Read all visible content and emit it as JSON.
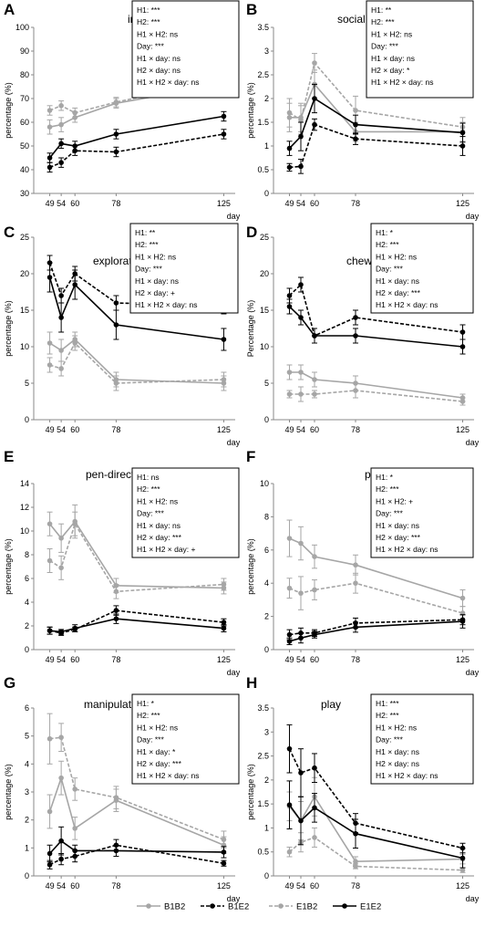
{
  "colors": {
    "B1B2": "#a6a6a6",
    "B1E2": "#000000",
    "E1B2": "#a6a6a6",
    "E1E2": "#000000"
  },
  "legend": [
    {
      "name": "B1B2",
      "color": "#a6a6a6",
      "dashed": false
    },
    {
      "name": "B1E2",
      "color": "#000000",
      "dashed": true
    },
    {
      "name": "E1B2",
      "color": "#a6a6a6",
      "dashed": true
    },
    {
      "name": "E1E2",
      "color": "#000000",
      "dashed": false
    }
  ],
  "chart_data": [
    {
      "panel": "A",
      "type": "line",
      "title": "inactivity",
      "ylabel": "percentage (%)",
      "xlabel": "day",
      "x": [
        49,
        54,
        60,
        78,
        125
      ],
      "ylim": [
        30,
        100
      ],
      "yticks": [
        30,
        40,
        50,
        60,
        70,
        80,
        90,
        100
      ],
      "stats": [
        "H1: ***",
        "H2: ***",
        "H1 × H2: ns",
        "Day: ***",
        "H1 × day: ns",
        "H2 × day: ns",
        "H1 × H2 × day: ns"
      ],
      "series": [
        {
          "name": "B1B2",
          "values": [
            58,
            59,
            62,
            68,
            76
          ],
          "errors": [
            3,
            3,
            2,
            2,
            3
          ]
        },
        {
          "name": "B1E2",
          "values": [
            41,
            43,
            48,
            47.5,
            55
          ],
          "errors": [
            2,
            2,
            2,
            2,
            2
          ]
        },
        {
          "name": "E1B2",
          "values": [
            65,
            67,
            64,
            68.5,
            78
          ],
          "errors": [
            2,
            2,
            2,
            2,
            2
          ]
        },
        {
          "name": "E1E2",
          "values": [
            45,
            51,
            50,
            55,
            62.5
          ],
          "errors": [
            2,
            2,
            2,
            2,
            2
          ]
        }
      ]
    },
    {
      "panel": "B",
      "type": "line",
      "title": "social behaviour",
      "ylabel": "percentage (%)",
      "xlabel": "day",
      "x": [
        49,
        54,
        60,
        78,
        125
      ],
      "ylim": [
        0,
        3.5
      ],
      "yticks": [
        0,
        0.5,
        1,
        1.5,
        2,
        2.5,
        3,
        3.5
      ],
      "stats": [
        "H1: **",
        "H2: ***",
        "H1 × H2: ns",
        "Day: ***",
        "H1 × day: ns",
        "H2 × day: *",
        "H1 × H2 × day: ns"
      ],
      "series": [
        {
          "name": "B1B2",
          "values": [
            1.6,
            1.6,
            2.3,
            1.3,
            1.3
          ],
          "errors": [
            0.3,
            0.3,
            0.3,
            0.2,
            0.2
          ]
        },
        {
          "name": "B1E2",
          "values": [
            0.55,
            0.57,
            1.45,
            1.15,
            1.0
          ],
          "errors": [
            0.08,
            0.15,
            0.12,
            0.12,
            0.2
          ]
        },
        {
          "name": "E1B2",
          "values": [
            1.7,
            1.55,
            2.75,
            1.75,
            1.4
          ],
          "errors": [
            0.3,
            0.3,
            0.2,
            0.3,
            0.2
          ]
        },
        {
          "name": "E1E2",
          "values": [
            0.95,
            1.2,
            2.0,
            1.45,
            1.28
          ],
          "errors": [
            0.15,
            0.3,
            0.3,
            0.2,
            0.2
          ]
        }
      ]
    },
    {
      "panel": "C",
      "type": "line",
      "title": "exploration",
      "ylabel": "percentage (%)",
      "xlabel": "day",
      "x": [
        49,
        54,
        60,
        78,
        125
      ],
      "ylim": [
        0,
        25
      ],
      "yticks": [
        0,
        5,
        10,
        15,
        20,
        25
      ],
      "stats": [
        "H1: **",
        "H2: ***",
        "H1 × H2: ns",
        "Day: ***",
        "H1 × day: ns",
        "H2 × day: +",
        "H1 × H2 × day: ns"
      ],
      "series": [
        {
          "name": "B1B2",
          "values": [
            10.5,
            9.5,
            11.0,
            5.5,
            5.0
          ],
          "errors": [
            1.5,
            1.5,
            1.0,
            1.0,
            1.0
          ]
        },
        {
          "name": "B1E2",
          "values": [
            21.5,
            17.0,
            20.0,
            16.0,
            15.5
          ],
          "errors": [
            1.0,
            1.0,
            1.0,
            1.0,
            1.0
          ]
        },
        {
          "name": "E1B2",
          "values": [
            7.5,
            7.0,
            10.5,
            5.0,
            5.5
          ],
          "errors": [
            1.0,
            1.0,
            1.0,
            1.0,
            1.0
          ]
        },
        {
          "name": "E1E2",
          "values": [
            19.5,
            14.0,
            18.5,
            13.0,
            11.0
          ],
          "errors": [
            2.0,
            2.0,
            2.0,
            2.0,
            1.5
          ]
        }
      ]
    },
    {
      "panel": "D",
      "type": "line",
      "title": "chewing",
      "ylabel": "Percentage (%)",
      "xlabel": "day",
      "x": [
        49,
        54,
        60,
        78,
        125
      ],
      "ylim": [
        0,
        25
      ],
      "yticks": [
        0,
        5,
        10,
        15,
        20,
        25
      ],
      "stats": [
        "H1: *",
        "H2: ***",
        "H1 × H2: ns",
        "Day: ***",
        "H1 × day: ns",
        "H2 × day: ***",
        "H1 × H2 × day: ns"
      ],
      "series": [
        {
          "name": "B1B2",
          "values": [
            6.5,
            6.5,
            5.5,
            5.0,
            3.0
          ],
          "errors": [
            1.0,
            1.0,
            1.0,
            1.0,
            0.5
          ]
        },
        {
          "name": "B1E2",
          "values": [
            17.0,
            18.5,
            11.5,
            14.0,
            12.0
          ],
          "errors": [
            1.0,
            1.0,
            1.0,
            1.0,
            1.0
          ]
        },
        {
          "name": "E1B2",
          "values": [
            3.5,
            3.5,
            3.5,
            4.0,
            2.5
          ],
          "errors": [
            0.5,
            1.0,
            0.5,
            1.0,
            0.5
          ]
        },
        {
          "name": "E1E2",
          "values": [
            15.5,
            14.0,
            11.5,
            11.5,
            10.0
          ],
          "errors": [
            1.0,
            1.0,
            1.0,
            1.0,
            1.0
          ]
        }
      ]
    },
    {
      "panel": "E",
      "type": "line",
      "title": "pen-directed exploration",
      "ylabel": "percentage (%)",
      "xlabel": "day",
      "x": [
        49,
        54,
        60,
        78,
        125
      ],
      "ylim": [
        0,
        14
      ],
      "yticks": [
        0,
        2,
        4,
        6,
        8,
        10,
        12,
        14
      ],
      "stats": [
        "H1: ns",
        "H2: ***",
        "H1 × H2: ns",
        "Day: ***",
        "H1 × day: ns",
        "H2 × day: ***",
        "H1 × H2 × day: +"
      ],
      "series": [
        {
          "name": "B1B2",
          "values": [
            10.6,
            9.4,
            10.8,
            5.4,
            5.2
          ],
          "errors": [
            1.0,
            1.2,
            1.4,
            0.6,
            0.5
          ]
        },
        {
          "name": "B1E2",
          "values": [
            1.6,
            1.4,
            1.7,
            3.3,
            2.3
          ],
          "errors": [
            0.3,
            0.2,
            0.2,
            0.4,
            0.3
          ]
        },
        {
          "name": "E1B2",
          "values": [
            7.5,
            6.9,
            10.6,
            4.9,
            5.5
          ],
          "errors": [
            1.0,
            1.0,
            1.0,
            0.6,
            0.5
          ]
        },
        {
          "name": "E1E2",
          "values": [
            1.6,
            1.5,
            1.8,
            2.6,
            1.8
          ],
          "errors": [
            0.3,
            0.2,
            0.3,
            0.4,
            0.3
          ]
        }
      ]
    },
    {
      "panel": "F",
      "type": "line",
      "title": "pen-directed chewing",
      "ylabel": "percentage (%)",
      "xlabel": "day",
      "x": [
        49,
        54,
        60,
        78,
        125
      ],
      "ylim": [
        0,
        10
      ],
      "yticks": [
        0,
        2,
        4,
        6,
        8,
        10
      ],
      "stats": [
        "H1: *",
        "H2: ***",
        "H1 × H2: +",
        "Day: ***",
        "H1 × day: ns",
        "H2 × day: ***",
        "H1 × H2 × day: ns"
      ],
      "series": [
        {
          "name": "B1B2",
          "values": [
            6.7,
            6.4,
            5.6,
            5.1,
            3.1
          ],
          "errors": [
            1.1,
            1.0,
            0.7,
            0.6,
            0.5
          ]
        },
        {
          "name": "B1E2",
          "values": [
            0.9,
            1.0,
            1.0,
            1.6,
            1.8
          ],
          "errors": [
            0.3,
            0.3,
            0.2,
            0.3,
            0.3
          ]
        },
        {
          "name": "E1B2",
          "values": [
            3.7,
            3.4,
            3.6,
            4.0,
            2.2
          ],
          "errors": [
            0.6,
            1.0,
            0.6,
            0.6,
            0.4
          ]
        },
        {
          "name": "E1E2",
          "values": [
            0.5,
            0.7,
            0.9,
            1.35,
            1.7
          ],
          "errors": [
            0.2,
            0.3,
            0.2,
            0.3,
            0.4
          ]
        }
      ]
    },
    {
      "panel": "G",
      "type": "line",
      "title": "manipulation",
      "ylabel": "percentage (%)",
      "xlabel": "day",
      "x": [
        49,
        54,
        60,
        78,
        125
      ],
      "ylim": [
        0,
        6
      ],
      "yticks": [
        0,
        1,
        2,
        3,
        4,
        5,
        6
      ],
      "stats": [
        "H1: *",
        "H2: ***",
        "H1 × H2: ns",
        "Day: ***",
        "H1 × day: *",
        "H2 × day: ***",
        "H1 × H2 × day: ns"
      ],
      "series": [
        {
          "name": "B1B2",
          "values": [
            2.3,
            3.5,
            1.7,
            2.7,
            1.1
          ],
          "errors": [
            0.6,
            0.6,
            0.4,
            0.4,
            0.3
          ]
        },
        {
          "name": "B1E2",
          "values": [
            0.4,
            0.6,
            0.7,
            1.1,
            0.45
          ],
          "errors": [
            0.15,
            0.2,
            0.2,
            0.2,
            0.1
          ]
        },
        {
          "name": "E1B2",
          "values": [
            4.9,
            4.95,
            3.1,
            2.8,
            1.3
          ],
          "errors": [
            0.9,
            0.5,
            0.4,
            0.4,
            0.3
          ]
        },
        {
          "name": "E1E2",
          "values": [
            0.8,
            1.25,
            0.9,
            0.9,
            0.85
          ],
          "errors": [
            0.3,
            0.5,
            0.2,
            0.2,
            0.2
          ]
        }
      ]
    },
    {
      "panel": "H",
      "type": "line",
      "title": "play",
      "ylabel": "percentage (%)",
      "xlabel": "day",
      "x": [
        49,
        54,
        60,
        78,
        125
      ],
      "ylim": [
        0,
        3.5
      ],
      "yticks": [
        0,
        0.5,
        1,
        1.5,
        2,
        2.5,
        3,
        3.5
      ],
      "stats": [
        "H1: ***",
        "H2: ***",
        "H1 × H2: ns",
        "Day: ***",
        "H1 × day: ns",
        "H2 × day: ns",
        "H1 × H2 × day: ns"
      ],
      "series": [
        {
          "name": "B1B2",
          "values": [
            1.45,
            1.15,
            1.65,
            0.3,
            0.35
          ],
          "errors": [
            0.3,
            0.4,
            0.4,
            0.1,
            0.1
          ]
        },
        {
          "name": "B1E2",
          "values": [
            2.65,
            2.15,
            2.25,
            1.1,
            0.58
          ],
          "errors": [
            0.5,
            0.5,
            0.3,
            0.2,
            0.1
          ]
        },
        {
          "name": "E1B2",
          "values": [
            0.5,
            0.7,
            0.8,
            0.2,
            0.12
          ],
          "errors": [
            0.1,
            0.2,
            0.2,
            0.05,
            0.05
          ]
        },
        {
          "name": "E1E2",
          "values": [
            1.48,
            1.15,
            1.42,
            0.88,
            0.37
          ],
          "errors": [
            0.5,
            0.5,
            0.3,
            0.3,
            0.2
          ]
        }
      ]
    }
  ]
}
